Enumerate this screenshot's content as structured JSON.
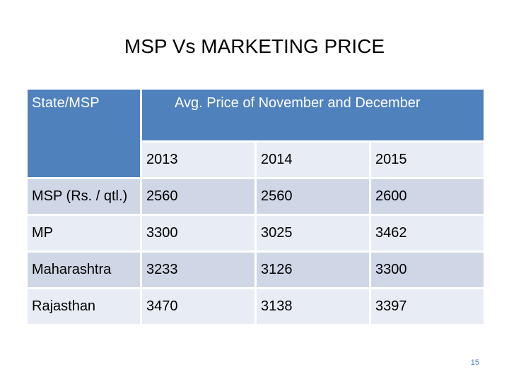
{
  "slide": {
    "title": "MSP Vs MARKETING PRICE",
    "page_number": "15"
  },
  "table": {
    "corner_header": "State/MSP",
    "group_header": "Avg. Price of November and December",
    "years": [
      "2013",
      "2014",
      "2015"
    ],
    "rows": [
      {
        "label": "MSP (Rs. / qtl.)",
        "values": [
          "2560",
          "2560",
          "2600"
        ]
      },
      {
        "label": "MP",
        "values": [
          "3300",
          "3025",
          "3462"
        ]
      },
      {
        "label": "Maharashtra",
        "values": [
          "3233",
          "3126",
          "3300"
        ]
      },
      {
        "label": "Rajasthan",
        "values": [
          "3470",
          "3138",
          "3397"
        ]
      }
    ]
  },
  "colors": {
    "header_blue": "#4f81bd",
    "row_dark": "#cfd6e5",
    "row_light": "#e8ecf4"
  }
}
